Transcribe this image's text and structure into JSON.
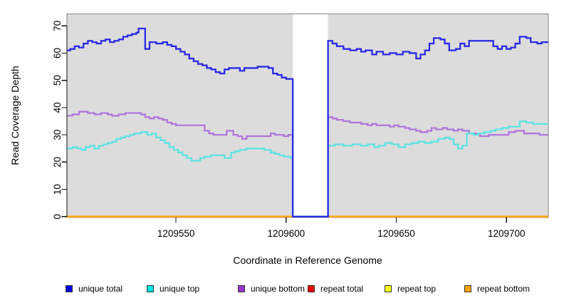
{
  "chart_data": {
    "type": "line",
    "step": "after",
    "title": "",
    "xlabel": "Coordinate in Reference Genome",
    "ylabel": "Read Coverage Depth",
    "xlim": [
      1209500.5,
      1209719
    ],
    "ylim": [
      0,
      70
    ],
    "x_ticks": [
      1209550,
      1209600,
      1209650,
      1209700
    ],
    "y_ticks": [
      0,
      10,
      20,
      30,
      40,
      50,
      60,
      70
    ],
    "panel_bg": "#dcdcdc",
    "grid": false,
    "legend_position": "bottom",
    "gap_region": {
      "start": 1209603,
      "end": 1209619,
      "color": "#ffffff"
    },
    "series": [
      {
        "name": "repeat total",
        "legend_color": "#ee0000",
        "line_color": "#ee0000",
        "points": [
          [
            1209500.5,
            0
          ]
        ]
      },
      {
        "name": "repeat top",
        "legend_color": "#ffff00",
        "line_color": "#ffff00",
        "points": [
          [
            1209500.5,
            0
          ]
        ]
      },
      {
        "name": "repeat bottom",
        "legend_color": "#ffa500",
        "line_color": "#ffa500",
        "points": [
          [
            1209500.5,
            0
          ]
        ]
      },
      {
        "name": "unique bottom",
        "legend_color": "#9932cc",
        "line_color": "#b176db",
        "points": [
          [
            1209500.5,
            37
          ],
          [
            1209503,
            37.5
          ],
          [
            1209506,
            38.5
          ],
          [
            1209510,
            38
          ],
          [
            1209513,
            37.5
          ],
          [
            1209516,
            38
          ],
          [
            1209519,
            37.5
          ],
          [
            1209521,
            37
          ],
          [
            1209524,
            37.5
          ],
          [
            1209527,
            38
          ],
          [
            1209534,
            37.5
          ],
          [
            1209536,
            36.5
          ],
          [
            1209538,
            36
          ],
          [
            1209540,
            36.5
          ],
          [
            1209542,
            36
          ],
          [
            1209544,
            35.5
          ],
          [
            1209546,
            34.5
          ],
          [
            1209548,
            34
          ],
          [
            1209550,
            33.5
          ],
          [
            1209563,
            31.5
          ],
          [
            1209565,
            30.5
          ],
          [
            1209567,
            30
          ],
          [
            1209573,
            31.5
          ],
          [
            1209576,
            30
          ],
          [
            1209578,
            29.5
          ],
          [
            1209580,
            28.5
          ],
          [
            1209582,
            29.5
          ],
          [
            1209593,
            30.5
          ],
          [
            1209595,
            30
          ],
          [
            1209599,
            29.5
          ],
          [
            1209601,
            30
          ],
          [
            1209603,
            0
          ],
          [
            1209619,
            36.5
          ],
          [
            1209621,
            36
          ],
          [
            1209623,
            35.5
          ],
          [
            1209626,
            35
          ],
          [
            1209629,
            34.5
          ],
          [
            1209634,
            34
          ],
          [
            1209637,
            33.5
          ],
          [
            1209639,
            34
          ],
          [
            1209641,
            33.5
          ],
          [
            1209647,
            33
          ],
          [
            1209649,
            33.5
          ],
          [
            1209651,
            33
          ],
          [
            1209654,
            32.5
          ],
          [
            1209656,
            32
          ],
          [
            1209659,
            31.5
          ],
          [
            1209661,
            31
          ],
          [
            1209664,
            31.5
          ],
          [
            1209666,
            32.5
          ],
          [
            1209668,
            32
          ],
          [
            1209671,
            32.5
          ],
          [
            1209673,
            32
          ],
          [
            1209676,
            31.5
          ],
          [
            1209678,
            32
          ],
          [
            1209680,
            31.5
          ],
          [
            1209683,
            30.5
          ],
          [
            1209688,
            29.5
          ],
          [
            1209692,
            30
          ],
          [
            1209701,
            31
          ],
          [
            1209704,
            31.5
          ],
          [
            1209708,
            30.5
          ],
          [
            1209715,
            30
          ]
        ]
      },
      {
        "name": "unique top",
        "legend_color": "#00e5e5",
        "line_color": "#5fe2e2",
        "points": [
          [
            1209500.5,
            25
          ],
          [
            1209503,
            25.5
          ],
          [
            1209505,
            25
          ],
          [
            1209507,
            24.5
          ],
          [
            1209509,
            25.5
          ],
          [
            1209511,
            26
          ],
          [
            1209513,
            25
          ],
          [
            1209515,
            26
          ],
          [
            1209517,
            26.5
          ],
          [
            1209519,
            27
          ],
          [
            1209521,
            27.5
          ],
          [
            1209523,
            28.5
          ],
          [
            1209525,
            29
          ],
          [
            1209527,
            29.5
          ],
          [
            1209529,
            30
          ],
          [
            1209531,
            30.5
          ],
          [
            1209534,
            31
          ],
          [
            1209537,
            30
          ],
          [
            1209539,
            30.5
          ],
          [
            1209541,
            29
          ],
          [
            1209543,
            28
          ],
          [
            1209545,
            27
          ],
          [
            1209547,
            25.5
          ],
          [
            1209549,
            24.5
          ],
          [
            1209551,
            23.5
          ],
          [
            1209553,
            22.5
          ],
          [
            1209555,
            21.5
          ],
          [
            1209557,
            20.5
          ],
          [
            1209561,
            21.5
          ],
          [
            1209563,
            22
          ],
          [
            1209566,
            22.5
          ],
          [
            1209572,
            21.5
          ],
          [
            1209575,
            23.5
          ],
          [
            1209577,
            24
          ],
          [
            1209579,
            24.5
          ],
          [
            1209582,
            25
          ],
          [
            1209590,
            24.5
          ],
          [
            1209593,
            23.5
          ],
          [
            1209595,
            23
          ],
          [
            1209597,
            22.5
          ],
          [
            1209599,
            22
          ],
          [
            1209602,
            21.5
          ],
          [
            1209603,
            0
          ],
          [
            1209619,
            26
          ],
          [
            1209622,
            26.5
          ],
          [
            1209626,
            26
          ],
          [
            1209630,
            26.5
          ],
          [
            1209634,
            26
          ],
          [
            1209637,
            26.5
          ],
          [
            1209640,
            25.5
          ],
          [
            1209642,
            26
          ],
          [
            1209645,
            27
          ],
          [
            1209648,
            26.5
          ],
          [
            1209651,
            25.5
          ],
          [
            1209654,
            26.5
          ],
          [
            1209657,
            27
          ],
          [
            1209660,
            27.5
          ],
          [
            1209663,
            27
          ],
          [
            1209666,
            27.5
          ],
          [
            1209669,
            28.5
          ],
          [
            1209672,
            29
          ],
          [
            1209674,
            28.5
          ],
          [
            1209676,
            26.5
          ],
          [
            1209678,
            25
          ],
          [
            1209680,
            26
          ],
          [
            1209682,
            30.5
          ],
          [
            1209685,
            30
          ],
          [
            1209687,
            30.5
          ],
          [
            1209690,
            31
          ],
          [
            1209693,
            31.5
          ],
          [
            1209695,
            32
          ],
          [
            1209698,
            32.5
          ],
          [
            1209701,
            33
          ],
          [
            1209706,
            35
          ],
          [
            1209709,
            34.5
          ],
          [
            1209712,
            34
          ],
          [
            1209716,
            34
          ]
        ]
      },
      {
        "name": "unique total",
        "legend_color": "#0000ee",
        "line_color": "#2a2ae6",
        "points": [
          [
            1209500.5,
            61
          ],
          [
            1209502,
            61.5
          ],
          [
            1209504,
            62.5
          ],
          [
            1209506,
            62
          ],
          [
            1209508,
            63.5
          ],
          [
            1209510,
            64.5
          ],
          [
            1209512,
            64
          ],
          [
            1209514,
            63.5
          ],
          [
            1209516,
            64.5
          ],
          [
            1209518,
            65
          ],
          [
            1209520,
            64
          ],
          [
            1209522,
            64.5
          ],
          [
            1209524,
            65
          ],
          [
            1209526,
            66
          ],
          [
            1209528,
            66.5
          ],
          [
            1209530,
            67
          ],
          [
            1209532,
            67.5
          ],
          [
            1209533,
            69
          ],
          [
            1209536,
            61.5
          ],
          [
            1209538,
            64
          ],
          [
            1209541,
            63.5
          ],
          [
            1209544,
            64
          ],
          [
            1209546,
            63
          ],
          [
            1209548,
            62.5
          ],
          [
            1209550,
            61.5
          ],
          [
            1209552,
            60.5
          ],
          [
            1209554,
            59.5
          ],
          [
            1209556,
            58
          ],
          [
            1209558,
            57
          ],
          [
            1209560,
            56
          ],
          [
            1209562,
            55.5
          ],
          [
            1209564,
            54.5
          ],
          [
            1209566,
            54
          ],
          [
            1209568,
            53
          ],
          [
            1209570,
            52.5
          ],
          [
            1209572,
            54
          ],
          [
            1209574,
            54.5
          ],
          [
            1209579,
            53.5
          ],
          [
            1209581,
            54.5
          ],
          [
            1209587,
            55
          ],
          [
            1209592,
            54.5
          ],
          [
            1209594,
            52.5
          ],
          [
            1209596,
            52
          ],
          [
            1209598,
            51
          ],
          [
            1209600,
            50.5
          ],
          [
            1209603,
            0
          ],
          [
            1209619,
            64.5
          ],
          [
            1209621,
            63.5
          ],
          [
            1209623,
            62.5
          ],
          [
            1209626,
            61.5
          ],
          [
            1209629,
            61
          ],
          [
            1209632,
            61.5
          ],
          [
            1209634,
            60.5
          ],
          [
            1209636,
            61
          ],
          [
            1209639,
            59.5
          ],
          [
            1209641,
            60.5
          ],
          [
            1209644,
            59.5
          ],
          [
            1209647,
            60
          ],
          [
            1209650,
            59.5
          ],
          [
            1209653,
            60.5
          ],
          [
            1209656,
            60
          ],
          [
            1209659,
            58
          ],
          [
            1209661,
            59.5
          ],
          [
            1209663,
            61
          ],
          [
            1209665,
            63.5
          ],
          [
            1209667,
            65.5
          ],
          [
            1209670,
            65
          ],
          [
            1209672,
            63.5
          ],
          [
            1209674,
            61
          ],
          [
            1209677,
            61.5
          ],
          [
            1209679,
            63.5
          ],
          [
            1209681,
            62.5
          ],
          [
            1209683,
            64.5
          ],
          [
            1209694,
            62.5
          ],
          [
            1209696,
            61.5
          ],
          [
            1209698,
            62.5
          ],
          [
            1209700,
            61.5
          ],
          [
            1209702,
            62
          ],
          [
            1209704,
            63.5
          ],
          [
            1209706,
            66
          ],
          [
            1209709,
            65.5
          ],
          [
            1209711,
            64
          ],
          [
            1209714,
            63.5
          ],
          [
            1209716,
            64
          ]
        ]
      }
    ]
  },
  "legend": {
    "items": [
      {
        "label": "unique total",
        "color": "#0000ee"
      },
      {
        "label": "unique top",
        "color": "#00e5e5"
      },
      {
        "label": "unique bottom",
        "color": "#9932cc"
      },
      {
        "label": "repeat total",
        "color": "#ee0000"
      },
      {
        "label": "repeat top",
        "color": "#ffff00"
      },
      {
        "label": "repeat bottom",
        "color": "#ffa500"
      }
    ]
  }
}
